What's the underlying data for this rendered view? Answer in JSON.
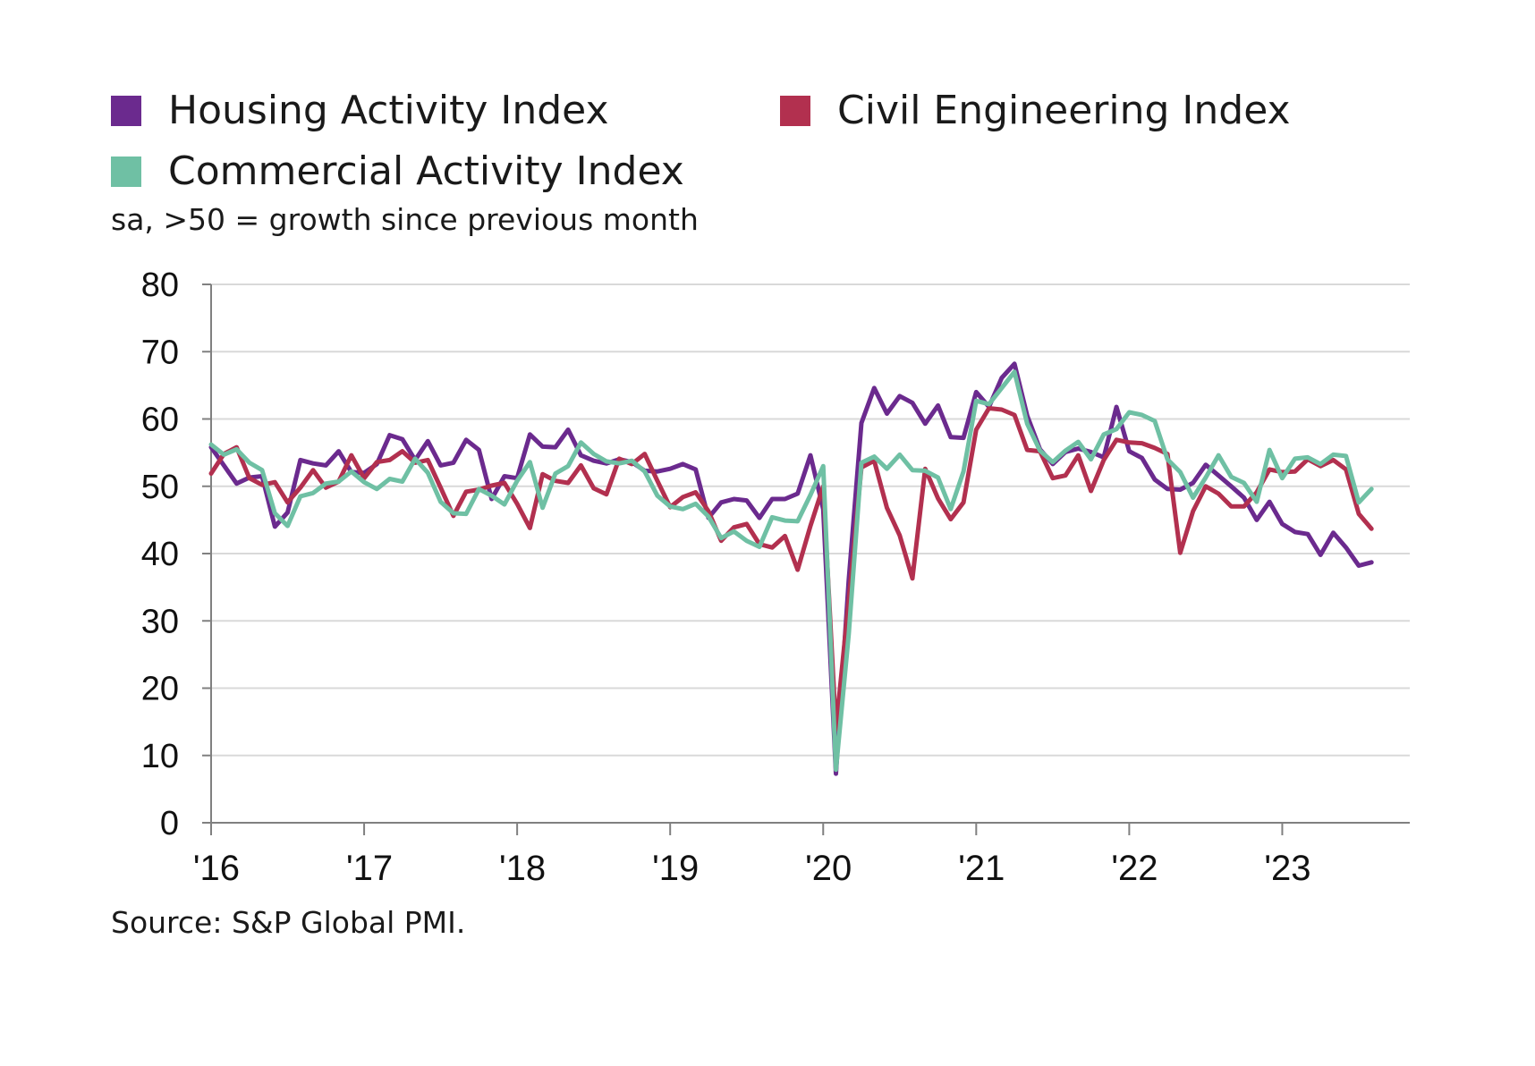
{
  "legend": {
    "housing": "Housing Activity Index",
    "civil": "Civil Engineering Index",
    "commercial": "Commercial Activity Index"
  },
  "subtitle": "sa, >50 = growth since previous month",
  "source": "Source: S&P Global PMI.",
  "colors": {
    "housing": "#6b2a8e",
    "civil": "#b2304f",
    "commercial": "#6fc0a4",
    "grid": "#d9d9d9",
    "axis": "#808080"
  },
  "chart_data": {
    "type": "line",
    "title": "",
    "xlabel": "",
    "ylabel": "",
    "ylim": [
      0,
      80
    ],
    "yticks": [
      "0",
      "10",
      "20",
      "30",
      "40",
      "50",
      "60",
      "70",
      "80"
    ],
    "xlim": [
      "2016-01",
      "2023-11"
    ],
    "xticks": [
      {
        "label": "'16",
        "date": "2016-01"
      },
      {
        "label": "'17",
        "date": "2017-01"
      },
      {
        "label": "'18",
        "date": "2018-01"
      },
      {
        "label": "'19",
        "date": "2019-01"
      },
      {
        "label": "'20",
        "date": "2020-01"
      },
      {
        "label": "'21",
        "date": "2021-01"
      },
      {
        "label": "'22",
        "date": "2022-01"
      },
      {
        "label": "'23",
        "date": "2023-01"
      }
    ],
    "grid": true,
    "legend_position": "top",
    "x_start": "2016-01",
    "frequency": "monthly",
    "series": [
      {
        "name": "Housing Activity Index",
        "color": "#6b2a8e",
        "values": [
          55.8,
          53.1,
          50.4,
          51.3,
          51.5,
          44.0,
          46.1,
          53.9,
          53.4,
          53.1,
          55.2,
          52.1,
          52.0,
          53.3,
          57.6,
          57.0,
          53.9,
          56.7,
          53.1,
          53.5,
          56.9,
          55.4,
          48.1,
          51.5,
          51.2,
          57.7,
          55.9,
          55.8,
          58.4,
          54.6,
          53.8,
          53.4,
          54.0,
          53.6,
          52.3,
          52.2,
          52.6,
          53.3,
          52.5,
          45.3,
          47.6,
          48.1,
          47.9,
          45.3,
          48.1,
          48.1,
          48.9,
          54.6,
          46.6,
          7.3,
          36.0,
          59.4,
          64.6,
          60.8,
          63.4,
          62.4,
          59.3,
          62.0,
          57.3,
          57.2,
          64.0,
          61.8,
          66.1,
          68.2,
          60.5,
          55.5,
          53.3,
          55.1,
          55.6,
          55.1,
          54.3,
          61.8,
          55.2,
          54.2,
          51.0,
          49.6,
          49.5,
          50.5,
          53.2,
          51.6,
          50.0,
          48.3,
          45.0,
          47.7,
          44.4,
          43.2,
          42.9,
          39.8,
          43.1,
          40.9,
          38.2,
          38.7
        ]
      },
      {
        "name": "Civil Engineering Index",
        "color": "#b2304f",
        "values": [
          51.9,
          54.8,
          55.8,
          51.2,
          50.2,
          50.6,
          47.6,
          49.8,
          52.4,
          49.8,
          50.7,
          54.6,
          51.2,
          53.6,
          53.9,
          55.2,
          53.5,
          53.9,
          49.8,
          45.6,
          49.2,
          49.5,
          50.1,
          50.5,
          47.4,
          43.8,
          51.8,
          50.8,
          50.5,
          53.1,
          49.7,
          48.8,
          54.1,
          53.3,
          54.8,
          50.8,
          46.9,
          48.4,
          49.1,
          46.3,
          41.9,
          43.9,
          44.4,
          41.4,
          40.9,
          42.6,
          37.6,
          44.1,
          50.0,
          13.9,
          33.0,
          52.8,
          53.8,
          46.8,
          42.7,
          36.3,
          52.6,
          48.2,
          45.1,
          47.6,
          58.4,
          61.6,
          61.4,
          60.6,
          55.4,
          55.2,
          51.2,
          51.6,
          54.6,
          49.3,
          53.9,
          56.9,
          56.5,
          56.4,
          55.7,
          54.8,
          40.1,
          46.3,
          50.0,
          48.9,
          47.0,
          47.0,
          49.1,
          52.5,
          52.1,
          52.2,
          54.0,
          53.0,
          53.9,
          52.5,
          45.9,
          43.7
        ]
      },
      {
        "name": "Commercial Activity Index",
        "color": "#6fc0a4",
        "values": [
          56.2,
          54.7,
          55.5,
          53.5,
          52.4,
          46.0,
          44.1,
          48.5,
          49.0,
          50.4,
          50.7,
          52.2,
          50.6,
          49.6,
          51.1,
          50.7,
          54.1,
          52.0,
          47.7,
          46.0,
          45.9,
          49.6,
          48.6,
          47.3,
          50.8,
          53.6,
          46.8,
          51.9,
          53.0,
          56.5,
          54.8,
          53.7,
          53.4,
          53.8,
          52.2,
          48.6,
          47.0,
          46.6,
          47.4,
          45.5,
          42.3,
          43.3,
          41.9,
          41.0,
          45.4,
          44.9,
          44.8,
          48.7,
          53.0,
          7.9,
          28.0,
          53.5,
          54.4,
          52.6,
          54.7,
          52.4,
          52.3,
          51.3,
          46.6,
          52.2,
          62.7,
          62.2,
          64.6,
          67.0,
          59.3,
          55.3,
          53.6,
          55.3,
          56.6,
          54.0,
          57.7,
          58.5,
          61.0,
          60.6,
          59.7,
          54.0,
          52.1,
          48.3,
          51.3,
          54.6,
          51.4,
          50.5,
          47.7,
          55.4,
          51.2,
          54.1,
          54.3,
          53.3,
          54.7,
          54.5,
          47.6,
          49.6
        ]
      }
    ]
  }
}
